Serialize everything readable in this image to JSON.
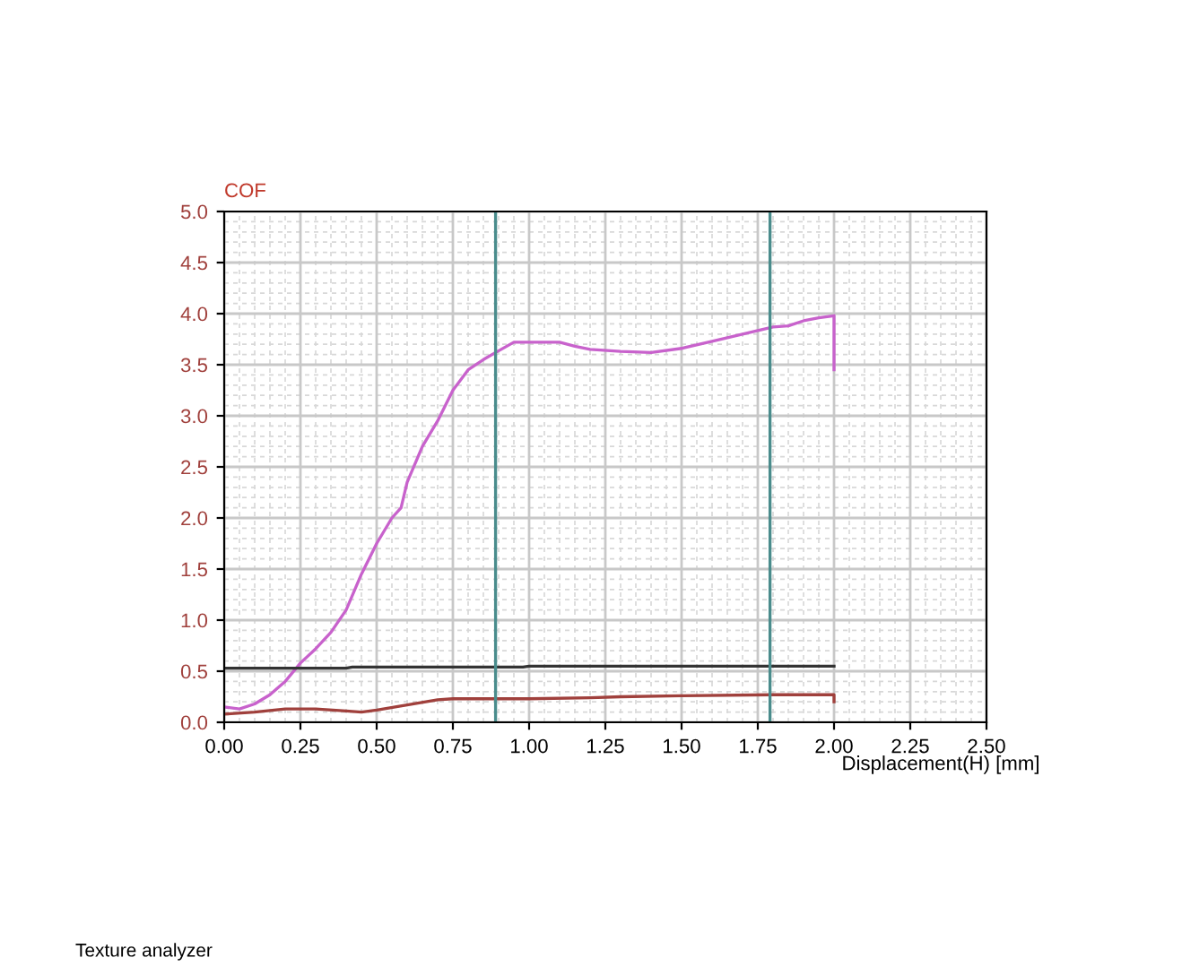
{
  "chart_data": {
    "type": "line",
    "xlabel": "Displacement(H) [mm]",
    "ylabel": "COF",
    "xlim": [
      0,
      2.5
    ],
    "ylim": [
      0,
      5
    ],
    "xticks": [
      {
        "value": 0,
        "label": "0.00"
      },
      {
        "value": 0.25,
        "label": "0.25"
      },
      {
        "value": 0.5,
        "label": "0.50"
      },
      {
        "value": 0.75,
        "label": "0.75"
      },
      {
        "value": 1,
        "label": "1.00"
      },
      {
        "value": 1.25,
        "label": "1.25"
      },
      {
        "value": 1.5,
        "label": "1.50"
      },
      {
        "value": 1.75,
        "label": "1.75"
      },
      {
        "value": 2,
        "label": "2.00"
      },
      {
        "value": 2.25,
        "label": "2.25"
      },
      {
        "value": 2.5,
        "label": "2.50"
      }
    ],
    "yticks": [
      {
        "value": 0,
        "label": "0.0"
      },
      {
        "value": 0.5,
        "label": "0.5"
      },
      {
        "value": 1,
        "label": "1.0"
      },
      {
        "value": 1.5,
        "label": "1.5"
      },
      {
        "value": 2,
        "label": "2.0"
      },
      {
        "value": 2.5,
        "label": "2.5"
      },
      {
        "value": 3,
        "label": "3.0"
      },
      {
        "value": 3.5,
        "label": "3.5"
      },
      {
        "value": 4,
        "label": "4.0"
      },
      {
        "value": 4.5,
        "label": "4.5"
      },
      {
        "value": 5,
        "label": "5.0"
      }
    ],
    "grid": true,
    "marker": "none",
    "line_style": "solid",
    "series": [
      {
        "color": "#c862cc",
        "x": [
          0,
          0.05,
          0.1,
          0.15,
          0.2,
          0.25,
          0.3,
          0.35,
          0.4,
          0.45,
          0.5,
          0.55,
          0.58,
          0.6,
          0.65,
          0.7,
          0.75,
          0.8,
          0.85,
          0.89,
          0.95,
          1.0,
          1.1,
          1.15,
          1.2,
          1.3,
          1.4,
          1.5,
          1.6,
          1.7,
          1.8,
          1.85,
          1.9,
          1.95,
          2.0,
          2.0
        ],
        "values": [
          0.15,
          0.13,
          0.18,
          0.27,
          0.4,
          0.58,
          0.72,
          0.88,
          1.1,
          1.45,
          1.75,
          2.0,
          2.1,
          2.35,
          2.7,
          2.95,
          3.25,
          3.45,
          3.55,
          3.62,
          3.72,
          3.72,
          3.72,
          3.68,
          3.65,
          3.63,
          3.62,
          3.66,
          3.73,
          3.8,
          3.87,
          3.88,
          3.93,
          3.96,
          3.98,
          3.45
        ]
      },
      {
        "color": "#333333",
        "x": [
          0,
          0.4,
          0.42,
          0.98,
          1.0,
          2.0
        ],
        "values": [
          0.53,
          0.53,
          0.54,
          0.54,
          0.55,
          0.55
        ]
      },
      {
        "color": "#a0403c",
        "x": [
          0,
          0.1,
          0.2,
          0.3,
          0.4,
          0.45,
          0.5,
          0.6,
          0.7,
          0.75,
          1.0,
          1.2,
          1.3,
          1.5,
          1.8,
          2.0,
          2.0
        ],
        "values": [
          0.08,
          0.1,
          0.13,
          0.13,
          0.11,
          0.1,
          0.12,
          0.17,
          0.22,
          0.23,
          0.23,
          0.24,
          0.25,
          0.26,
          0.27,
          0.27,
          0.2
        ]
      }
    ],
    "ref_lines": [
      {
        "axis": "x",
        "value": 0.89,
        "color": "#4a8c8c"
      },
      {
        "axis": "x",
        "value": 1.79,
        "color": "#4a8c8c"
      }
    ],
    "annotations": [
      "Texture analyzer"
    ]
  }
}
